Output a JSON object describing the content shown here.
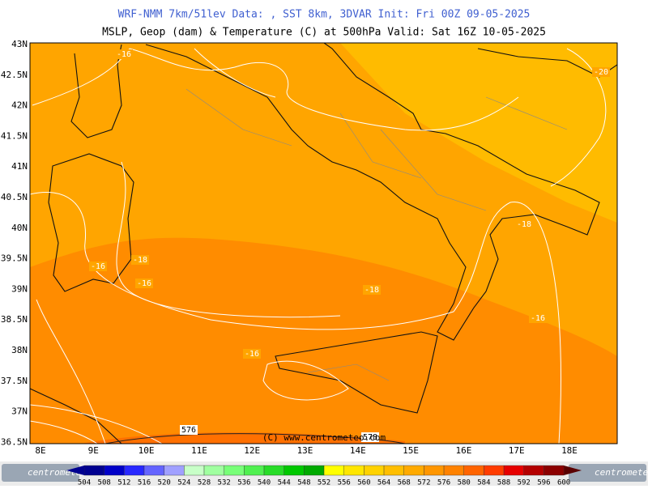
{
  "header": {
    "line1": "WRF-NMM 7km/51lev  Data: , SST 8km, 3DVAR  Init: Fri 00Z 09-05-2025",
    "line2": "MSLP, Geop (dam) & Temperature (C) at 500hPa  Valid: Sat 16Z 10-05-2025"
  },
  "latitudes": [
    "43N",
    "42.5N",
    "42N",
    "41.5N",
    "41N",
    "40.5N",
    "40N",
    "39.5N",
    "39N",
    "38.5N",
    "38N",
    "37.5N",
    "37N",
    "36.5N"
  ],
  "longitudes": [
    "8E",
    "9E",
    "10E",
    "11E",
    "12E",
    "13E",
    "14E",
    "15E",
    "16E",
    "17E",
    "18E"
  ],
  "contour_labels": [
    "-16",
    "-20",
    "-18",
    "-16",
    "-16",
    "-18",
    "-18",
    "-16",
    "-16",
    "576",
    "578"
  ],
  "copyright": "(C) www.centrometeo.com",
  "logo": "centrometeo",
  "colorbar": {
    "labels": [
      "504",
      "508",
      "512",
      "516",
      "520",
      "524",
      "528",
      "532",
      "536",
      "540",
      "544",
      "548",
      "552",
      "556",
      "560",
      "564",
      "568",
      "572",
      "576",
      "580",
      "584",
      "588",
      "592",
      "596",
      "600"
    ],
    "colors": [
      "#000090",
      "#0000c8",
      "#2828ff",
      "#6464ff",
      "#a0a0ff",
      "#c8ffc8",
      "#a0ffa0",
      "#78ff78",
      "#50f050",
      "#28dc28",
      "#00c800",
      "#00aa00",
      "#ffff00",
      "#ffe600",
      "#ffd200",
      "#ffbe00",
      "#ffaa00",
      "#ff9600",
      "#ff8200",
      "#ff6400",
      "#ff3c00",
      "#e60000",
      "#b40000",
      "#8c0000",
      "#5a0000"
    ]
  }
}
